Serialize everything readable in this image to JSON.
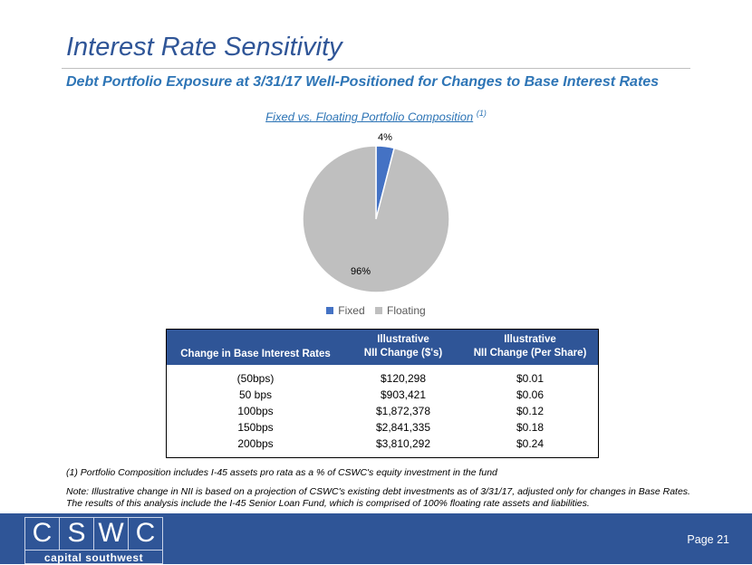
{
  "header": {
    "title": "Interest Rate Sensitivity",
    "subtitle": "Debt Portfolio Exposure at 3/31/17 Well-Positioned for Changes to Base Interest Rates"
  },
  "chart": {
    "title": "Fixed vs. Floating Portfolio Composition",
    "title_footnote": "(1)",
    "labels": [
      "4%",
      "96%"
    ]
  },
  "chart_data": {
    "type": "pie",
    "title": "Fixed vs. Floating Portfolio Composition (1)",
    "categories": [
      "Fixed",
      "Floating"
    ],
    "values": [
      4,
      96
    ],
    "colors": [
      "#4472c4",
      "#bfbfbf"
    ],
    "data_labels": [
      "4%",
      "96%"
    ],
    "legend": "bottom"
  },
  "table": {
    "headers": [
      {
        "line1": "",
        "line2": "Change in Base Interest Rates"
      },
      {
        "line1": "Illustrative",
        "line2": "NII Change ($'s)"
      },
      {
        "line1": "Illustrative",
        "line2": "NII Change (Per Share)"
      }
    ],
    "rows": [
      [
        "(50bps)",
        "$120,298",
        "$0.01"
      ],
      [
        "50 bps",
        "$903,421",
        "$0.06"
      ],
      [
        "100bps",
        "$1,872,378",
        "$0.12"
      ],
      [
        "150bps",
        "$2,841,335",
        "$0.18"
      ],
      [
        "200bps",
        "$3,810,292",
        "$0.24"
      ]
    ]
  },
  "footnotes": {
    "fn1": "(1) Portfolio Composition includes I-45 assets pro rata as a % of CSWC's equity investment in the fund",
    "note_line1": "Note:  Illustrative change in NII is based on a projection of CSWC's existing debt investments as of 3/31/17, adjusted only for changes in Base Rates.",
    "note_line2": "The results of this analysis include the I-45 Senior Loan Fund, which is comprised of 100% floating rate assets and liabilities."
  },
  "footer": {
    "logo_letters": [
      "C",
      "S",
      "W",
      "C"
    ],
    "logo_tagline": "capital southwest",
    "page_label": "Page 21"
  }
}
